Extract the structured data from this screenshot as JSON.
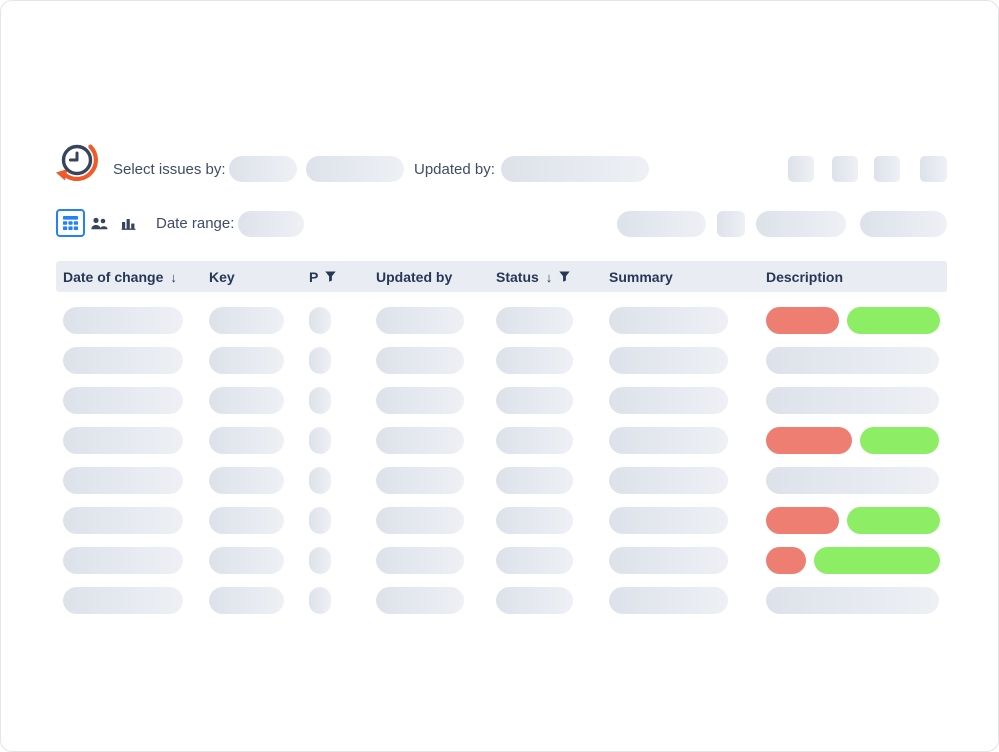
{
  "filter_bar": {
    "select_issues_label": "Select issues by:",
    "updated_by_label": "Updated by:",
    "date_range_label": "Date range:"
  },
  "view_switcher": {
    "views": [
      {
        "name": "table",
        "icon": "table-grid-icon",
        "selected": true
      },
      {
        "name": "users",
        "icon": "users-icon",
        "selected": false
      },
      {
        "name": "chart",
        "icon": "bar-chart-icon",
        "selected": false
      }
    ]
  },
  "logo": {
    "icon": "history-clock-icon"
  },
  "table": {
    "columns": [
      {
        "label": "Date of change",
        "sort_arrow": "↓",
        "filter": false
      },
      {
        "label": "Key",
        "sort_arrow": "",
        "filter": false
      },
      {
        "label": "P",
        "sort_arrow": "",
        "filter": true
      },
      {
        "label": "Updated by",
        "sort_arrow": "",
        "filter": false
      },
      {
        "label": "Status",
        "sort_arrow": "↓",
        "filter": true
      },
      {
        "label": "Summary",
        "sort_arrow": "",
        "filter": false
      },
      {
        "label": "Description",
        "sort_arrow": "",
        "filter": false
      }
    ],
    "rows": [
      {
        "cells": "skeleton",
        "description": [
          "removed",
          "added"
        ]
      },
      {
        "cells": "skeleton",
        "description": [
          "unchanged"
        ]
      },
      {
        "cells": "skeleton",
        "description": [
          "unchanged"
        ]
      },
      {
        "cells": "skeleton",
        "description": [
          "removed_wide",
          "added_short"
        ]
      },
      {
        "cells": "skeleton",
        "description": [
          "unchanged"
        ]
      },
      {
        "cells": "skeleton",
        "description": [
          "removed",
          "added"
        ]
      },
      {
        "cells": "skeleton",
        "description": [
          "removed_short",
          "added_wide"
        ]
      },
      {
        "cells": "skeleton",
        "description": [
          "unchanged"
        ]
      }
    ]
  },
  "colors": {
    "removed_pill": "#ee7e72",
    "added_pill": "#8ded64",
    "accent_blue": "#2680f7",
    "logo_orange": "#f05a28",
    "logo_navy": "#37445e",
    "header_bg": "#e9edf3",
    "header_text": "#253858",
    "label_text": "#3e4c66",
    "skeleton_from": "#dde2ea",
    "skeleton_to": "#eef0f5"
  }
}
